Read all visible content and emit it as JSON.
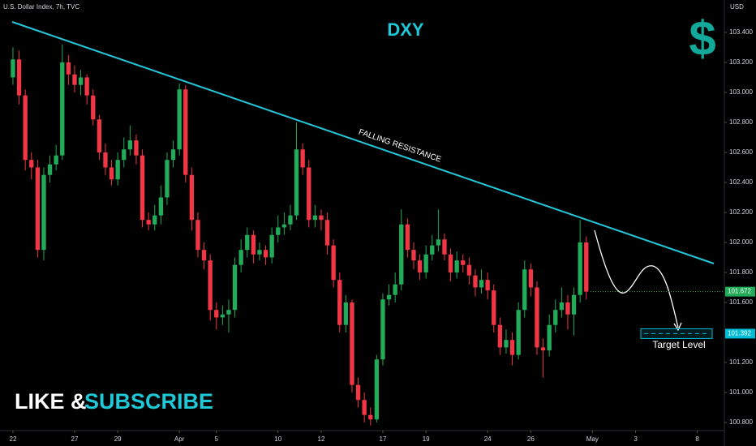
{
  "chart_data": {
    "type": "candlestick",
    "header": "U.S. Dollar Index, 7h, TVC",
    "currency": "USD",
    "title": "DXY",
    "icon": "$",
    "annotation": "FALLING RESISTANCE",
    "target_label": "Target Level",
    "footer": [
      "LIKE &",
      "SUBSCRIBE"
    ],
    "up_color": "#22ab58",
    "down_color": "#f23645",
    "open": [
      103.1,
      103.22,
      102.98,
      102.55,
      102.5,
      101.95,
      102.45,
      102.52,
      102.58,
      103.2,
      103.12,
      103.05,
      103.1,
      102.98,
      102.82,
      102.6,
      102.5,
      102.42,
      102.55,
      102.62,
      102.68,
      102.58,
      102.15,
      102.12,
      102.18,
      102.3,
      102.55,
      102.62,
      103.02,
      102.45,
      102.15,
      101.95,
      101.88,
      101.55,
      101.5,
      101.52,
      101.55,
      101.85,
      101.95,
      102.05,
      101.92,
      101.95,
      101.9,
      102.05,
      102.1,
      102.12,
      102.18,
      102.62,
      102.5,
      102.15,
      102.18,
      102.15,
      101.98,
      101.75,
      101.45,
      101.6,
      101.05,
      100.95,
      100.85,
      100.82,
      101.22,
      101.62,
      101.65,
      101.72,
      102.12,
      101.95,
      101.88,
      101.8,
      101.92,
      101.98,
      102.02,
      101.92,
      101.8,
      101.88,
      101.85,
      101.78,
      101.7,
      101.75,
      101.68,
      101.45,
      101.3,
      101.35,
      101.25,
      101.55,
      101.82,
      101.7,
      101.3,
      101.28,
      101.45,
      101.55,
      101.6,
      101.52,
      101.65,
      102.0
    ],
    "high": [
      103.3,
      103.28,
      103.02,
      102.6,
      102.55,
      102.5,
      102.58,
      102.65,
      103.32,
      103.25,
      103.18,
      103.15,
      103.12,
      103.02,
      102.85,
      102.66,
      102.55,
      102.6,
      102.7,
      102.78,
      102.72,
      102.62,
      102.2,
      102.25,
      102.38,
      102.6,
      102.68,
      103.06,
      103.05,
      102.5,
      102.2,
      102.0,
      101.92,
      101.6,
      101.58,
      101.62,
      101.9,
      102.02,
      102.1,
      102.08,
      102.0,
      101.98,
      102.1,
      102.18,
      102.2,
      102.25,
      102.8,
      102.66,
      102.55,
      102.25,
      102.22,
      102.2,
      102.02,
      101.8,
      101.65,
      101.62,
      101.1,
      101.0,
      100.9,
      101.25,
      101.66,
      101.72,
      101.8,
      102.22,
      102.16,
      102.0,
      101.92,
      101.98,
      102.05,
      102.22,
      102.06,
      101.96,
      101.94,
      101.92,
      101.9,
      101.82,
      101.82,
      101.8,
      101.72,
      101.5,
      101.42,
      101.4,
      101.6,
      101.88,
      101.86,
      101.74,
      101.36,
      101.52,
      101.62,
      101.7,
      101.65,
      101.7,
      102.15,
      102.04
    ],
    "low": [
      103.05,
      102.92,
      102.48,
      102.42,
      101.9,
      101.88,
      102.4,
      102.48,
      102.55,
      103.05,
      103.0,
      102.98,
      102.92,
      102.78,
      102.55,
      102.45,
      102.38,
      102.38,
      102.5,
      102.58,
      102.52,
      102.1,
      102.08,
      102.08,
      102.12,
      102.25,
      102.5,
      102.58,
      102.4,
      102.08,
      101.9,
      101.82,
      101.48,
      101.42,
      101.45,
      101.4,
      101.5,
      101.8,
      101.9,
      101.86,
      101.88,
      101.85,
      101.86,
      102.0,
      102.05,
      102.08,
      102.15,
      102.45,
      102.1,
      102.1,
      102.08,
      101.92,
      101.7,
      101.4,
      101.4,
      101.0,
      100.9,
      100.8,
      100.78,
      100.8,
      101.18,
      101.58,
      101.6,
      101.68,
      101.9,
      101.82,
      101.75,
      101.76,
      101.88,
      101.94,
      101.88,
      101.74,
      101.76,
      101.8,
      101.72,
      101.64,
      101.66,
      101.62,
      101.4,
      101.25,
      101.26,
      101.18,
      101.22,
      101.5,
      101.64,
      101.25,
      101.1,
      101.24,
      101.4,
      101.5,
      101.42,
      101.38,
      101.6,
      101.62
    ],
    "close": [
      103.22,
      102.98,
      102.55,
      102.5,
      101.95,
      102.45,
      102.52,
      102.58,
      103.2,
      103.12,
      103.05,
      103.1,
      102.98,
      102.82,
      102.6,
      102.5,
      102.42,
      102.55,
      102.62,
      102.68,
      102.58,
      102.15,
      102.12,
      102.18,
      102.3,
      102.55,
      102.62,
      103.02,
      102.45,
      102.15,
      101.95,
      101.88,
      101.55,
      101.5,
      101.52,
      101.55,
      101.85,
      101.95,
      102.05,
      101.92,
      101.95,
      101.9,
      102.05,
      102.1,
      102.12,
      102.18,
      102.62,
      102.5,
      102.15,
      102.18,
      102.15,
      101.98,
      101.75,
      101.45,
      101.6,
      101.05,
      100.95,
      100.85,
      100.82,
      101.22,
      101.62,
      101.65,
      101.72,
      102.12,
      101.95,
      101.88,
      101.8,
      101.92,
      101.98,
      102.02,
      101.92,
      101.8,
      101.88,
      101.85,
      101.78,
      101.7,
      101.75,
      101.68,
      101.45,
      101.3,
      101.35,
      101.25,
      101.55,
      101.82,
      101.7,
      101.3,
      101.28,
      101.45,
      101.55,
      101.6,
      101.52,
      101.65,
      102.0,
      101.672
    ],
    "xlim": [
      -2.1,
      115.4
    ],
    "xticks": [
      {
        "value": 0,
        "label": "22"
      },
      {
        "value": 10,
        "label": "27"
      },
      {
        "value": 17,
        "label": "29"
      },
      {
        "value": 27,
        "label": "Apr"
      },
      {
        "value": 33,
        "label": "5"
      },
      {
        "value": 43,
        "label": "10"
      },
      {
        "value": 50,
        "label": "12"
      },
      {
        "value": 60,
        "label": "17"
      },
      {
        "value": 67,
        "label": "19"
      },
      {
        "value": 77,
        "label": "24"
      },
      {
        "value": 84,
        "label": "26"
      },
      {
        "value": 94,
        "label": "May"
      },
      {
        "value": 101,
        "label": "3"
      },
      {
        "value": 111,
        "label": "8"
      }
    ],
    "ylim": [
      100.697,
      103.616
    ],
    "yticks": [
      {
        "value": 100.8,
        "label": "100.800"
      },
      {
        "value": 101.0,
        "label": "101.000"
      },
      {
        "value": 101.2,
        "label": "101.200"
      },
      {
        "value": 101.6,
        "label": "101.600"
      },
      {
        "value": 101.8,
        "label": "101.800"
      },
      {
        "value": 102.0,
        "label": "102.000"
      },
      {
        "value": 102.2,
        "label": "102.200"
      },
      {
        "value": 102.4,
        "label": "102.400"
      },
      {
        "value": 102.6,
        "label": "102.600"
      },
      {
        "value": 102.8,
        "label": "102.800"
      },
      {
        "value": 103.0,
        "label": "103.000"
      },
      {
        "value": 103.2,
        "label": "103.200"
      },
      {
        "value": 103.4,
        "label": "103.400"
      }
    ],
    "price_tags": [
      {
        "value": 101.672,
        "label": "101.672",
        "color": "#22ab58"
      },
      {
        "value": 101.392,
        "label": "101.392",
        "color": "#00bcd4"
      }
    ],
    "grid": false
  }
}
